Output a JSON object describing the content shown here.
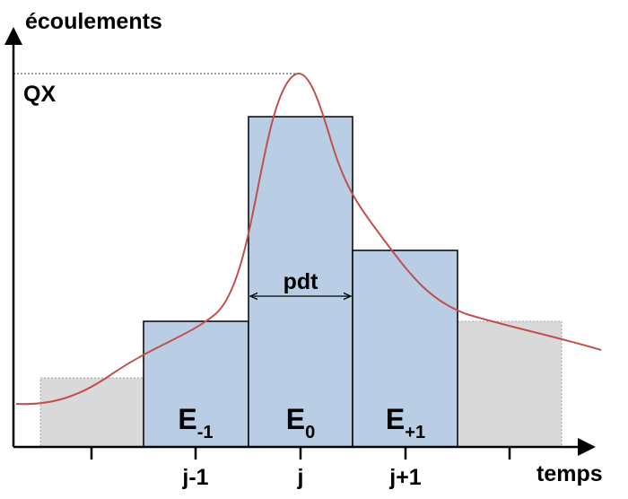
{
  "axes": {
    "y_label": "écoulements",
    "x_label": "temps"
  },
  "peak_label": "QX",
  "step_label": "pdt",
  "blocks": [
    {
      "label": "E",
      "subscript": "-1"
    },
    {
      "label": "E",
      "subscript": "0"
    },
    {
      "label": "E",
      "subscript": "+1"
    }
  ],
  "ticks": [
    "j-1",
    "j",
    "j+1"
  ]
}
